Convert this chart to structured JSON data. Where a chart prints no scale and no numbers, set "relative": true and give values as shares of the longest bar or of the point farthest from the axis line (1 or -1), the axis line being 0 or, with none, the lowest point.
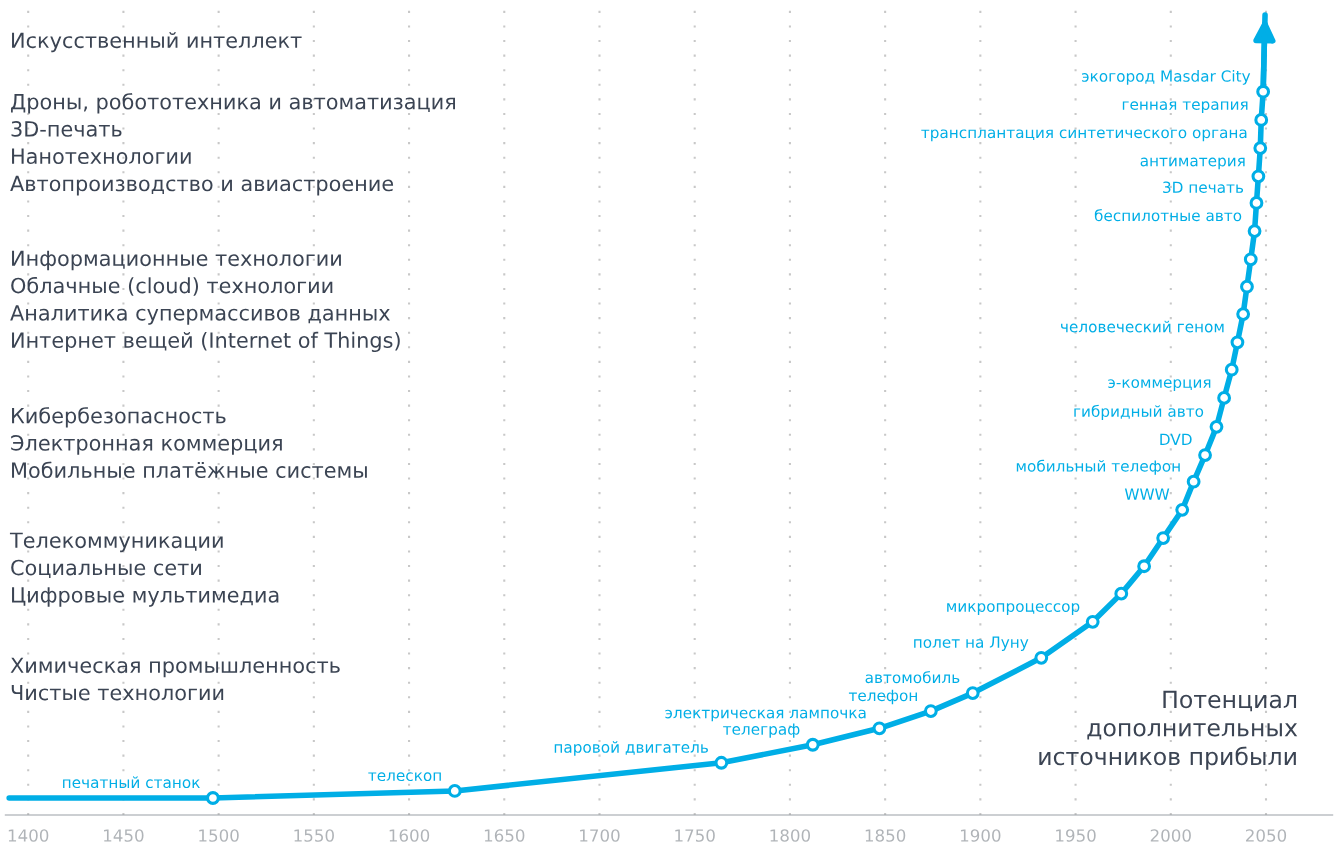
{
  "chart_data": {
    "type": "line",
    "relative": true,
    "xlim": [
      1388,
      2085
    ],
    "xticks": [
      1400,
      1450,
      1500,
      1550,
      1600,
      1650,
      1700,
      1750,
      1800,
      1850,
      1900,
      1950,
      2000,
      2050
    ],
    "grid": "x",
    "legend": false,
    "tick_labels": "x",
    "series": [
      {
        "type": "line",
        "color": "#00aee6",
        "marker": "none",
        "x": [
          1390,
          1497,
          1624,
          1764,
          1812,
          1847,
          1874,
          1896,
          1932,
          1959,
          1974,
          1986,
          1996,
          2006,
          2012,
          2018,
          2024,
          2028,
          2032,
          2035,
          2038,
          2040,
          2042,
          2044,
          2045,
          2046,
          2047,
          2047.5,
          2048.5,
          2049.5
        ],
        "values": [
          0,
          0,
          0.009,
          0.045,
          0.068,
          0.089,
          0.111,
          0.134,
          0.179,
          0.225,
          0.261,
          0.296,
          0.332,
          0.368,
          0.404,
          0.438,
          0.474,
          0.511,
          0.547,
          0.582,
          0.618,
          0.653,
          0.688,
          0.724,
          0.76,
          0.794,
          0.83,
          0.866,
          0.902,
          1.0
        ]
      },
      {
        "type": "scatter",
        "color": "#00aee6",
        "marker": "circle",
        "x": [
          1497,
          1624,
          1764,
          1812,
          1847,
          1874,
          1896,
          1932,
          1959,
          1974,
          1986,
          1996,
          2006,
          2012,
          2018,
          2024,
          2028,
          2032,
          2035,
          2038,
          2040,
          2042,
          2044,
          2045,
          2046,
          2047,
          2047.5,
          2048.5
        ],
        "values": [
          0,
          0.009,
          0.045,
          0.068,
          0.089,
          0.111,
          0.134,
          0.179,
          0.225,
          0.261,
          0.296,
          0.332,
          0.368,
          0.404,
          0.438,
          0.474,
          0.511,
          0.547,
          0.582,
          0.618,
          0.653,
          0.688,
          0.724,
          0.76,
          0.794,
          0.83,
          0.866,
          0.902
        ]
      }
    ],
    "annotations": [
      "Искусственный интеллект",
      "Дроны, робототехника и автоматизация\n3D-печать\nНанотехнологии\nАвтопроизводство и авиастроение",
      "Информационные технологии\nОблачные (cloud) технологии\nАналитика супермассивов данных\nИнтернет вещей (Internet of Things)",
      "Кибербезопасность\nЭлектронная коммерция\nМобильные платёжные системы",
      "Телекоммуникации\nСоциальные сети\nЦифровые мультимедиа",
      "Химическая промышленность\nЧистые технологии",
      "Потенциал\nдополнительных\nисточников прибыли",
      {
        "text": "печатный станок",
        "x": 1497,
        "y": 0
      },
      {
        "text": "телескоп",
        "x": 1624,
        "y": 0.009
      },
      {
        "text": "паровой двигатель",
        "x": 1764,
        "y": 0.045
      },
      {
        "text": "телеграф",
        "x": 1812,
        "y": 0.068
      },
      {
        "text": "электрическая лампочка",
        "x": 1847,
        "y": 0.089
      },
      {
        "text": "телефон",
        "x": 1874,
        "y": 0.111
      },
      {
        "text": "автомобиль",
        "x": 1896,
        "y": 0.134
      },
      {
        "text": "полет на Луну",
        "x": 1932,
        "y": 0.179
      },
      {
        "text": "микропроцессор",
        "x": 1959,
        "y": 0.225
      },
      {
        "text": "WWW",
        "x": 2006,
        "y": 0.368
      },
      {
        "text": "мобильный телефон",
        "x": 2012,
        "y": 0.404
      },
      {
        "text": "DVD",
        "x": 2018,
        "y": 0.438
      },
      {
        "text": "гибридный авто",
        "x": 2024,
        "y": 0.474
      },
      {
        "text": "э-коммерция",
        "x": 2028,
        "y": 0.511
      },
      {
        "text": "человеческий геном",
        "x": 2035,
        "y": 0.582
      },
      {
        "text": "беспилотные авто",
        "x": 2044,
        "y": 0.724
      },
      {
        "text": "3D печать",
        "x": 2045,
        "y": 0.76
      },
      {
        "text": "антиматерия",
        "x": 2046,
        "y": 0.794
      },
      {
        "text": "трансплантация синтетического органа",
        "x": 2047,
        "y": 0.83
      },
      {
        "text": "генная терапия",
        "x": 2047.5,
        "y": 0.866
      },
      {
        "text": "экогород Masdar City",
        "x": 2048.5,
        "y": 0.902
      }
    ]
  }
}
